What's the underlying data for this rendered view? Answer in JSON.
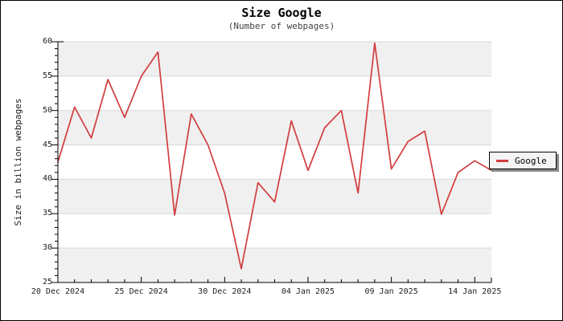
{
  "chart_data": {
    "type": "line",
    "title": "Size Google",
    "subtitle": "(Number of webpages)",
    "ylabel": "Size in billion webpages",
    "ylim": [
      25,
      60
    ],
    "ytick_step": 5,
    "yticks": [
      60,
      55,
      50,
      45,
      40,
      35,
      30,
      25
    ],
    "grid": "horizontal gridlines every 5 units with alternating gray bands",
    "legend_position": "right edge, overlapping plot",
    "x_tick_labels": [
      "20 Dec 2024",
      "25 Dec 2024",
      "30 Dec 2024",
      "04 Jan 2025",
      "09 Jan 2025",
      "14 Jan 2025"
    ],
    "x_tick_days": [
      0,
      5,
      10,
      15,
      20,
      25
    ],
    "x_dates": [
      "20 Dec 2024",
      "21 Dec 2024",
      "22 Dec 2024",
      "23 Dec 2024",
      "24 Dec 2024",
      "25 Dec 2024",
      "26 Dec 2024",
      "27 Dec 2024",
      "28 Dec 2024",
      "29 Dec 2024",
      "30 Dec 2024",
      "31 Dec 2024",
      "01 Jan 2025",
      "02 Jan 2025",
      "03 Jan 2025",
      "04 Jan 2025",
      "05 Jan 2025",
      "06 Jan 2025",
      "07 Jan 2025",
      "08 Jan 2025",
      "09 Jan 2025",
      "10 Jan 2025",
      "11 Jan 2025",
      "12 Jan 2025",
      "13 Jan 2025",
      "14 Jan 2025",
      "15 Jan 2025"
    ],
    "series": [
      {
        "name": "Google",
        "color": "#d23d3d",
        "values": [
          42.5,
          50.5,
          46,
          54.5,
          49,
          55,
          58.5,
          34.8,
          49.5,
          45,
          38,
          27,
          39.5,
          36.7,
          48.5,
          41.3,
          47.5,
          50,
          38,
          59.8,
          41.5,
          45.5,
          47,
          34.9,
          41,
          42.7,
          41.3
        ]
      }
    ],
    "colors": {
      "line": "#d23d3d",
      "band": "#f0f0f0",
      "grid": "#d8d8d8",
      "axis": "#000000",
      "text": "#222222",
      "legend_bg": "#f4f4f4",
      "legend_shadow": "#8c8c8c"
    }
  }
}
